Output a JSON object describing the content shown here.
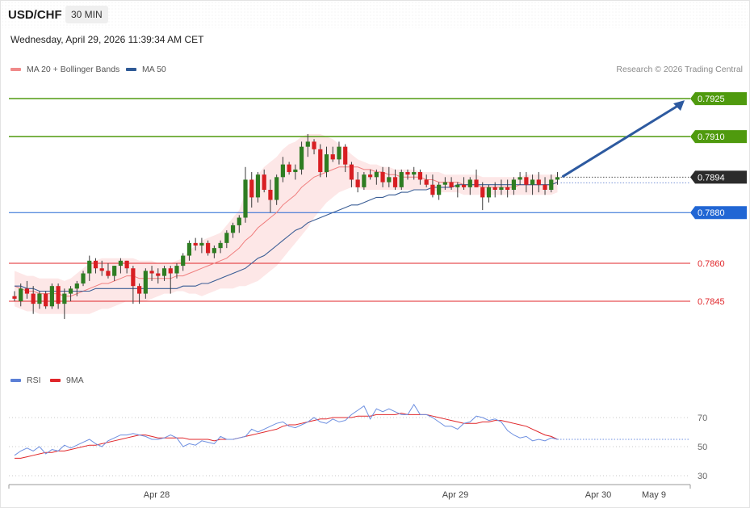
{
  "header": {
    "symbol": "USD/CHF",
    "timeframe": "30 MIN",
    "datetime": "Wednesday, April 29, 2026 11:39:34 AM CET",
    "copyright": "Research © 2026 Trading Central"
  },
  "legend": {
    "main": [
      {
        "label": "MA 20 + Bollinger Bands",
        "color": "#f08a8a"
      },
      {
        "label": "MA 50",
        "color": "#2f5a96"
      }
    ],
    "rsi": [
      {
        "label": "RSI",
        "color": "#5b7fd6"
      },
      {
        "label": "9MA",
        "color": "#e0262a"
      }
    ]
  },
  "chart_data": [
    {
      "type": "candlestick",
      "price_range": [
        0.7823,
        0.7933
      ],
      "levels": [
        {
          "value": 0.7925,
          "label": "0.7925",
          "kind": "resistance",
          "color": "#4f9a0e"
        },
        {
          "value": 0.791,
          "label": "0.7910",
          "kind": "resistance",
          "color": "#4f9a0e"
        },
        {
          "value": 0.7894,
          "label": "0.7894",
          "kind": "last",
          "color": "#2b2b2b"
        },
        {
          "value": 0.788,
          "label": "0.7880",
          "kind": "pivot",
          "color": "#2166d4"
        },
        {
          "value": 0.786,
          "label": "0.7860",
          "kind": "support",
          "color": "#e0262a"
        },
        {
          "value": 0.7845,
          "label": "0.7845",
          "kind": "support",
          "color": "#e0262a"
        }
      ],
      "x_ticks": [
        "Apr 28",
        "Apr 29",
        "Apr 30",
        "May 9"
      ],
      "candles": [
        [
          0.7847,
          0.7849,
          0.7845,
          0.7846
        ],
        [
          0.7845,
          0.7852,
          0.7843,
          0.785
        ],
        [
          0.785,
          0.7853,
          0.7846,
          0.7848
        ],
        [
          0.7848,
          0.7851,
          0.784,
          0.7844
        ],
        [
          0.7844,
          0.7849,
          0.7842,
          0.7848
        ],
        [
          0.7848,
          0.7849,
          0.7842,
          0.7843
        ],
        [
          0.7843,
          0.7852,
          0.7842,
          0.7851
        ],
        [
          0.7851,
          0.7852,
          0.7842,
          0.7844
        ],
        [
          0.7844,
          0.785,
          0.7838,
          0.7848
        ],
        [
          0.7848,
          0.7851,
          0.7845,
          0.785
        ],
        [
          0.785,
          0.7853,
          0.7847,
          0.7852
        ],
        [
          0.7852,
          0.7857,
          0.7851,
          0.7856
        ],
        [
          0.7856,
          0.7863,
          0.7853,
          0.7861
        ],
        [
          0.7861,
          0.7862,
          0.7856,
          0.7858
        ],
        [
          0.7858,
          0.7861,
          0.7855,
          0.7857
        ],
        [
          0.7857,
          0.786,
          0.7854,
          0.7855
        ],
        [
          0.7855,
          0.7859,
          0.7853,
          0.7859
        ],
        [
          0.7859,
          0.7862,
          0.7856,
          0.7861
        ],
        [
          0.7861,
          0.7861,
          0.7856,
          0.7858
        ],
        [
          0.7858,
          0.7859,
          0.7844,
          0.7851
        ],
        [
          0.7851,
          0.7852,
          0.7844,
          0.7848
        ],
        [
          0.7848,
          0.7858,
          0.7846,
          0.7857
        ],
        [
          0.7857,
          0.7859,
          0.7853,
          0.7856
        ],
        [
          0.7856,
          0.7858,
          0.7852,
          0.7855
        ],
        [
          0.7855,
          0.7859,
          0.7853,
          0.7858
        ],
        [
          0.7858,
          0.7859,
          0.7848,
          0.7856
        ],
        [
          0.7856,
          0.786,
          0.7854,
          0.7859
        ],
        [
          0.7859,
          0.7864,
          0.7857,
          0.7863
        ],
        [
          0.7863,
          0.7869,
          0.7861,
          0.7868
        ],
        [
          0.7868,
          0.787,
          0.7865,
          0.7867
        ],
        [
          0.7867,
          0.787,
          0.7864,
          0.7868
        ],
        [
          0.7868,
          0.7869,
          0.7863,
          0.7864
        ],
        [
          0.7864,
          0.7867,
          0.7862,
          0.7866
        ],
        [
          0.7866,
          0.7869,
          0.7864,
          0.7868
        ],
        [
          0.7868,
          0.7873,
          0.7866,
          0.7872
        ],
        [
          0.7872,
          0.7876,
          0.787,
          0.7875
        ],
        [
          0.7875,
          0.7879,
          0.7872,
          0.7878
        ],
        [
          0.7878,
          0.7898,
          0.7876,
          0.7893
        ],
        [
          0.7893,
          0.7896,
          0.7882,
          0.7886
        ],
        [
          0.7886,
          0.7896,
          0.7884,
          0.7895
        ],
        [
          0.7895,
          0.7897,
          0.7888,
          0.7889
        ],
        [
          0.7889,
          0.7893,
          0.788,
          0.7885
        ],
        [
          0.7885,
          0.7895,
          0.7883,
          0.7894
        ],
        [
          0.7894,
          0.7902,
          0.7892,
          0.7899
        ],
        [
          0.7899,
          0.79,
          0.7895,
          0.7896
        ],
        [
          0.7896,
          0.7899,
          0.7893,
          0.7897
        ],
        [
          0.7897,
          0.7908,
          0.7895,
          0.7906
        ],
        [
          0.7906,
          0.7911,
          0.7902,
          0.7908
        ],
        [
          0.7908,
          0.7909,
          0.7903,
          0.7905
        ],
        [
          0.7905,
          0.7907,
          0.7894,
          0.7896
        ],
        [
          0.7896,
          0.7906,
          0.7894,
          0.7903
        ],
        [
          0.7903,
          0.7906,
          0.79,
          0.7901
        ],
        [
          0.7901,
          0.7908,
          0.7899,
          0.7906
        ],
        [
          0.7906,
          0.7907,
          0.7896,
          0.7899
        ],
        [
          0.7899,
          0.79,
          0.789,
          0.7893
        ],
        [
          0.7893,
          0.7896,
          0.7888,
          0.789
        ],
        [
          0.789,
          0.7896,
          0.7889,
          0.7895
        ],
        [
          0.7895,
          0.7897,
          0.7893,
          0.7894
        ],
        [
          0.7894,
          0.7897,
          0.7891,
          0.7896
        ],
        [
          0.7896,
          0.7898,
          0.789,
          0.7892
        ],
        [
          0.7892,
          0.7898,
          0.789,
          0.7894
        ],
        [
          0.7894,
          0.7897,
          0.7889,
          0.789
        ],
        [
          0.789,
          0.7897,
          0.7889,
          0.7896
        ],
        [
          0.7896,
          0.7897,
          0.7893,
          0.7895
        ],
        [
          0.7895,
          0.7898,
          0.7893,
          0.7896
        ],
        [
          0.7896,
          0.7897,
          0.7891,
          0.7893
        ],
        [
          0.7893,
          0.7895,
          0.789,
          0.7891
        ],
        [
          0.7891,
          0.7895,
          0.7886,
          0.7887
        ],
        [
          0.7887,
          0.7892,
          0.7885,
          0.7891
        ],
        [
          0.7891,
          0.7894,
          0.7889,
          0.7892
        ],
        [
          0.7892,
          0.7894,
          0.7889,
          0.789
        ],
        [
          0.789,
          0.7892,
          0.7886,
          0.7891
        ],
        [
          0.7891,
          0.7894,
          0.7889,
          0.789
        ],
        [
          0.789,
          0.7894,
          0.7887,
          0.7893
        ],
        [
          0.7893,
          0.7897,
          0.789,
          0.789
        ],
        [
          0.789,
          0.7892,
          0.7881,
          0.7886
        ],
        [
          0.7886,
          0.7891,
          0.7884,
          0.789
        ],
        [
          0.789,
          0.7892,
          0.7886,
          0.7889
        ],
        [
          0.7889,
          0.7893,
          0.7887,
          0.789
        ],
        [
          0.789,
          0.7893,
          0.7886,
          0.7889
        ],
        [
          0.7889,
          0.7894,
          0.7887,
          0.7893
        ],
        [
          0.7893,
          0.7896,
          0.7891,
          0.7894
        ],
        [
          0.7894,
          0.7896,
          0.7888,
          0.7891
        ],
        [
          0.7891,
          0.7895,
          0.7887,
          0.7893
        ],
        [
          0.7893,
          0.7896,
          0.7888,
          0.7891
        ],
        [
          0.7891,
          0.7894,
          0.7887,
          0.7889
        ],
        [
          0.7889,
          0.7895,
          0.7888,
          0.7893
        ],
        [
          0.7893,
          0.7896,
          0.7891,
          0.7894
        ]
      ],
      "ma20": [
        0.7851,
        0.785,
        0.7849,
        0.7849,
        0.7848,
        0.7848,
        0.7848,
        0.7848,
        0.7847,
        0.7847,
        0.7848,
        0.7849,
        0.785,
        0.7851,
        0.7852,
        0.7852,
        0.7853,
        0.7854,
        0.7855,
        0.7855,
        0.7854,
        0.7854,
        0.7854,
        0.7854,
        0.7854,
        0.7854,
        0.7855,
        0.7855,
        0.7856,
        0.7857,
        0.7858,
        0.7859,
        0.786,
        0.7861,
        0.7862,
        0.7864,
        0.7866,
        0.7869,
        0.7871,
        0.7874,
        0.7876,
        0.7878,
        0.788,
        0.7883,
        0.7885,
        0.7887,
        0.789,
        0.7892,
        0.7894,
        0.7895,
        0.7896,
        0.7897,
        0.7898,
        0.7898,
        0.7898,
        0.7898,
        0.7897,
        0.7897,
        0.7896,
        0.7896,
        0.7895,
        0.7895,
        0.7894,
        0.7894,
        0.7894,
        0.7894,
        0.7893,
        0.7893,
        0.7892,
        0.7892,
        0.7892,
        0.7892,
        0.7891,
        0.7891,
        0.7891,
        0.789,
        0.789,
        0.789,
        0.789,
        0.789,
        0.789,
        0.7891,
        0.7891,
        0.7891,
        0.7891,
        0.7891,
        0.7891,
        0.7892
      ],
      "bb_upper": [
        0.7857,
        0.7856,
        0.7855,
        0.7855,
        0.7854,
        0.7854,
        0.7854,
        0.7854,
        0.7853,
        0.7854,
        0.7856,
        0.7858,
        0.786,
        0.7861,
        0.7862,
        0.7862,
        0.7862,
        0.7862,
        0.7862,
        0.7862,
        0.7861,
        0.7861,
        0.7861,
        0.786,
        0.786,
        0.786,
        0.7861,
        0.7862,
        0.7865,
        0.7867,
        0.7869,
        0.787,
        0.7871,
        0.7872,
        0.7875,
        0.7878,
        0.7881,
        0.7888,
        0.7891,
        0.7895,
        0.7898,
        0.79,
        0.7902,
        0.7905,
        0.7907,
        0.7908,
        0.791,
        0.7911,
        0.7911,
        0.7911,
        0.791,
        0.7909,
        0.7907,
        0.7905,
        0.7903,
        0.7901,
        0.79,
        0.7899,
        0.7899,
        0.7898,
        0.7898,
        0.7897,
        0.7897,
        0.7897,
        0.7897,
        0.7896,
        0.7896,
        0.7896,
        0.7896,
        0.7895,
        0.7895,
        0.7895,
        0.7895,
        0.7895,
        0.7895,
        0.7894,
        0.7894,
        0.7894,
        0.7894,
        0.7894,
        0.7894,
        0.7894,
        0.7895,
        0.7895,
        0.7895,
        0.7895,
        0.7895,
        0.7895
      ],
      "bb_lower": [
        0.7843,
        0.7842,
        0.7841,
        0.7841,
        0.784,
        0.784,
        0.784,
        0.784,
        0.784,
        0.784,
        0.784,
        0.784,
        0.784,
        0.7841,
        0.7842,
        0.7842,
        0.7843,
        0.7844,
        0.7845,
        0.7845,
        0.7845,
        0.7845,
        0.7846,
        0.7847,
        0.7848,
        0.7848,
        0.7849,
        0.7849,
        0.7848,
        0.7848,
        0.7847,
        0.7848,
        0.7849,
        0.785,
        0.785,
        0.785,
        0.7851,
        0.7851,
        0.7852,
        0.7853,
        0.7855,
        0.7857,
        0.7859,
        0.7862,
        0.7865,
        0.7868,
        0.7871,
        0.7874,
        0.7878,
        0.7881,
        0.7884,
        0.7886,
        0.7888,
        0.7889,
        0.789,
        0.789,
        0.7889,
        0.7889,
        0.7889,
        0.7889,
        0.7889,
        0.7889,
        0.7889,
        0.7889,
        0.7889,
        0.7889,
        0.7889,
        0.7889,
        0.7888,
        0.7888,
        0.7888,
        0.7888,
        0.7887,
        0.7887,
        0.7887,
        0.7887,
        0.7887,
        0.7887,
        0.7887,
        0.7887,
        0.7887,
        0.7887,
        0.7887,
        0.7887,
        0.7887,
        0.7887,
        0.7887,
        0.7888
      ],
      "ma50": [
        0.7851,
        0.7851,
        0.785,
        0.785,
        0.7849,
        0.7849,
        0.7849,
        0.7849,
        0.7849,
        0.7849,
        0.7849,
        0.7849,
        0.7849,
        0.785,
        0.785,
        0.785,
        0.785,
        0.785,
        0.785,
        0.785,
        0.785,
        0.785,
        0.785,
        0.785,
        0.785,
        0.785,
        0.785,
        0.7851,
        0.7851,
        0.7851,
        0.7852,
        0.7852,
        0.7853,
        0.7854,
        0.7855,
        0.7856,
        0.7857,
        0.7858,
        0.786,
        0.7862,
        0.7863,
        0.7865,
        0.7867,
        0.7869,
        0.7871,
        0.7873,
        0.7874,
        0.7876,
        0.7877,
        0.7878,
        0.7879,
        0.788,
        0.7881,
        0.7882,
        0.7883,
        0.7883,
        0.7884,
        0.7885,
        0.7886,
        0.7886,
        0.7887,
        0.7887,
        0.7888,
        0.7888,
        0.7889,
        0.7889,
        0.7889,
        0.789,
        0.789,
        0.789,
        0.789,
        0.7891,
        0.7891,
        0.7891,
        0.7891,
        0.7891,
        0.7891,
        0.7891,
        0.7891,
        0.7891,
        0.7891,
        0.7891,
        0.7891,
        0.7891,
        0.7891,
        0.7891,
        0.7891,
        0.7892
      ],
      "projection": {
        "from": 0.7894,
        "to": 0.7925
      }
    },
    {
      "type": "line",
      "name": "RSI",
      "y_ticks": [
        70,
        50,
        30
      ],
      "y_range": [
        25,
        85
      ],
      "rsi": [
        44,
        47,
        49,
        47,
        50,
        45,
        48,
        47,
        51,
        49,
        51,
        53,
        55,
        52,
        50,
        54,
        56,
        58,
        58,
        59,
        58,
        57,
        55,
        55,
        56,
        58,
        56,
        50,
        52,
        51,
        54,
        53,
        52,
        57,
        55,
        55,
        56,
        57,
        62,
        60,
        62,
        64,
        66,
        67,
        64,
        63,
        65,
        67,
        70,
        67,
        66,
        69,
        67,
        68,
        72,
        75,
        78,
        69,
        76,
        74,
        76,
        74,
        72,
        72,
        79,
        72,
        72,
        70,
        67,
        64,
        64,
        62,
        66,
        67,
        71,
        70,
        68,
        69,
        67,
        61,
        58,
        56,
        57,
        54,
        55,
        54,
        56,
        55
      ],
      "ma9": [
        42,
        42,
        43,
        44,
        45,
        46,
        46,
        47,
        47,
        48,
        49,
        50,
        51,
        51,
        52,
        53,
        54,
        55,
        56,
        57,
        58,
        58,
        57,
        56,
        56,
        56,
        56,
        56,
        55,
        55,
        55,
        55,
        54,
        55,
        55,
        55,
        56,
        57,
        58,
        59,
        60,
        61,
        62,
        64,
        65,
        65,
        66,
        67,
        68,
        69,
        69,
        70,
        70,
        70,
        70,
        71,
        71,
        71,
        72,
        72,
        72,
        72,
        73,
        72,
        72,
        72,
        72,
        71,
        70,
        69,
        68,
        67,
        66,
        66,
        66,
        67,
        67,
        68,
        68,
        67,
        66,
        65,
        64,
        62,
        60,
        58,
        57,
        55
      ]
    }
  ]
}
